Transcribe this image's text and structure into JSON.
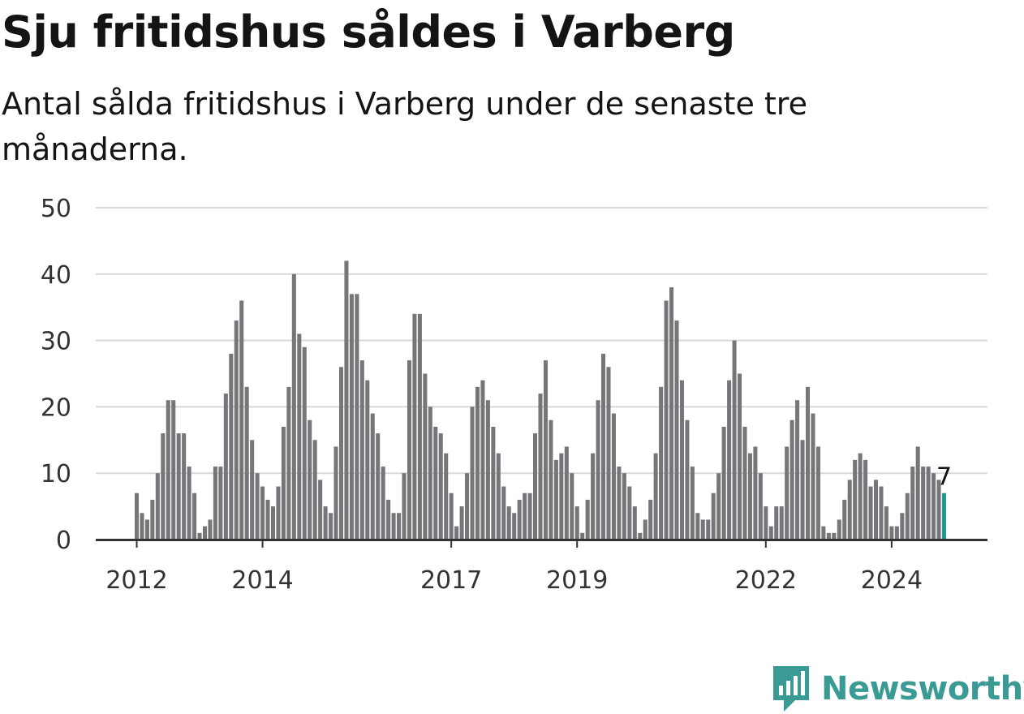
{
  "title": "Sju fritidshus såldes i Varberg",
  "subtitle": "Antal sålda fritidshus i Varberg under de senaste tre månaderna.",
  "brand": {
    "name": "Newsworthy",
    "icon": "newsworthy-logo-icon",
    "color": "#3a9b94"
  },
  "colors": {
    "bar": "#76757a",
    "highlight": "#1c9c93",
    "grid": "#d9d9d9",
    "axis": "#333333"
  },
  "chart_data": {
    "type": "bar",
    "title": "Sju fritidshus såldes i Varberg",
    "xlabel": "",
    "ylabel": "",
    "ylim": [
      0,
      50
    ],
    "yticks": [
      0,
      10,
      20,
      30,
      40,
      50
    ],
    "xtick_labels": [
      "2012",
      "2014",
      "2017",
      "2019",
      "2022",
      "2024"
    ],
    "xtick_years": [
      2012,
      2014,
      2017,
      2019,
      2022,
      2024
    ],
    "start": "2012-01",
    "end": "2025-03",
    "grid": true,
    "highlight_label": "7",
    "values": [
      7,
      4,
      3,
      6,
      10,
      16,
      21,
      21,
      16,
      16,
      11,
      7,
      1,
      2,
      3,
      11,
      11,
      22,
      28,
      33,
      36,
      23,
      15,
      10,
      8,
      6,
      5,
      8,
      17,
      23,
      40,
      31,
      29,
      18,
      15,
      9,
      5,
      4,
      14,
      26,
      42,
      37,
      37,
      27,
      24,
      19,
      16,
      11,
      6,
      4,
      4,
      10,
      27,
      34,
      34,
      25,
      20,
      17,
      16,
      13,
      7,
      2,
      5,
      10,
      20,
      23,
      24,
      21,
      17,
      13,
      8,
      5,
      4,
      6,
      7,
      7,
      16,
      22,
      27,
      18,
      12,
      13,
      14,
      10,
      5,
      1,
      6,
      13,
      21,
      28,
      26,
      19,
      11,
      10,
      8,
      5,
      1,
      3,
      6,
      13,
      23,
      36,
      38,
      33,
      24,
      18,
      11,
      4,
      3,
      3,
      7,
      10,
      17,
      24,
      30,
      25,
      17,
      13,
      14,
      10,
      5,
      2,
      5,
      5,
      14,
      18,
      21,
      15,
      23,
      19,
      14,
      2,
      1,
      1,
      3,
      6,
      9,
      12,
      13,
      12,
      8,
      9,
      8,
      5,
      2,
      2,
      4,
      7,
      11,
      14,
      11,
      11,
      10,
      9,
      7
    ]
  }
}
